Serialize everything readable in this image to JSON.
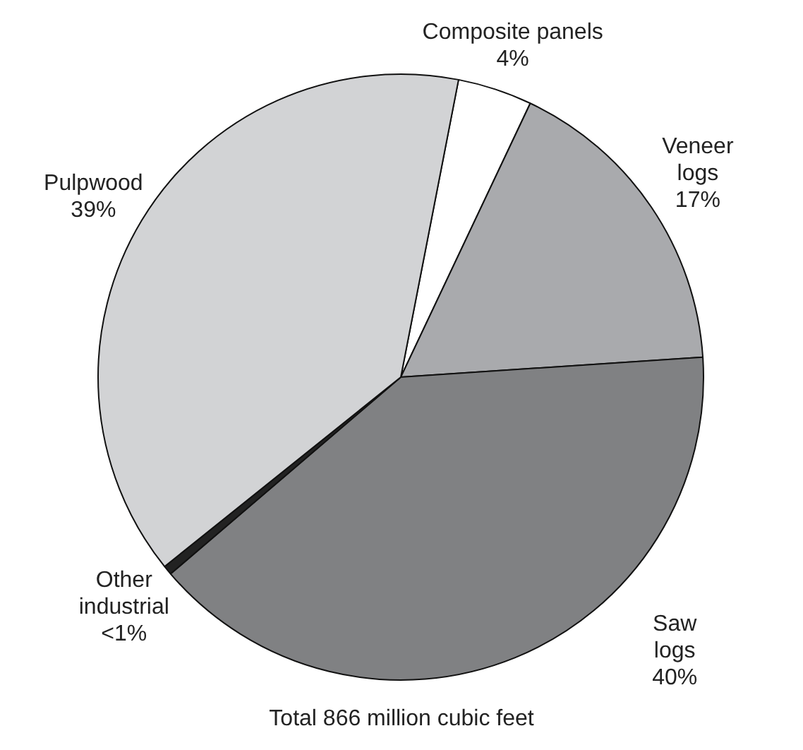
{
  "chart_data": {
    "type": "pie",
    "title": "Total 866 million cubic feet",
    "categories": [
      "Composite panels",
      "Veneer logs",
      "Saw logs",
      "Other industrial",
      "Pulpwood"
    ],
    "values": [
      4,
      17,
      40,
      0.5,
      39
    ],
    "value_labels": [
      "4%",
      "17%",
      "40%",
      "<1%",
      "39%"
    ],
    "colors": [
      "#ffffff",
      "#a9aaad",
      "#808183",
      "#222222",
      "#d2d3d5"
    ],
    "legend": false
  }
}
